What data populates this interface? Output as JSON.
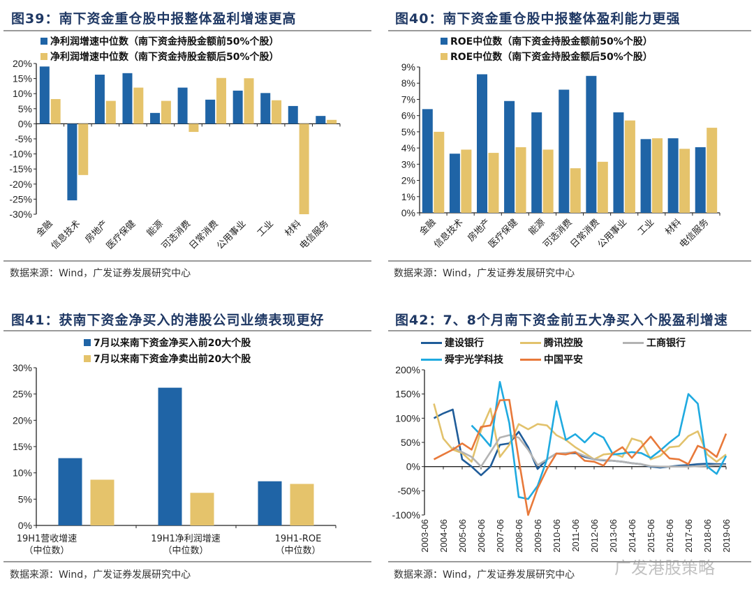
{
  "colors": {
    "blue": "#1F64A6",
    "gold": "#E5C36B",
    "title": "#1F3864"
  },
  "source_text": "数据来源：Wind，广发证券发展研究中心",
  "watermark": "广发港股策略",
  "chart_data": [
    {
      "id": "fig39",
      "type": "bar",
      "title": "图39：南下资金重仓股中报整体盈利增速更高",
      "categories": [
        "金融",
        "信息技术",
        "房地产",
        "医疗保健",
        "能源",
        "可选消费",
        "日常消费",
        "公用事业",
        "工业",
        "材料",
        "电信服务"
      ],
      "series": [
        {
          "name": "净利润增速中位数（南下资金持股金额前50%个股）",
          "color": "#1F64A6",
          "values": [
            19.0,
            -25.4,
            16.3,
            16.8,
            3.6,
            12.0,
            8.0,
            11.0,
            10.2,
            5.9,
            2.6
          ]
        },
        {
          "name": "净利润增速中位数（南下资金持股金额后50%个股）",
          "color": "#E5C36B",
          "values": [
            8.2,
            -17.0,
            7.6,
            12.0,
            7.6,
            -2.7,
            15.2,
            15.1,
            7.8,
            -30.0,
            1.3
          ]
        }
      ],
      "yticks": [
        "20%",
        "15%",
        "10%",
        "5%",
        "0%",
        "-5%",
        "-10%",
        "-15%",
        "-20%",
        "-25%",
        "-30%"
      ],
      "ylim": [
        -30,
        20
      ],
      "ystep": 5,
      "unit": "%",
      "legend": "top"
    },
    {
      "id": "fig40",
      "type": "bar",
      "title": "图40：南下资金重仓股中报整体盈利能力更强",
      "categories": [
        "金融",
        "信息技术",
        "房地产",
        "医疗保健",
        "能源",
        "可选消费",
        "日常消费",
        "公用事业",
        "工业",
        "材料",
        "电信服务"
      ],
      "series": [
        {
          "name": "ROE中位数（南下资金持股金额前50%个股）",
          "color": "#1F64A6",
          "values": [
            6.4,
            3.65,
            8.55,
            6.9,
            6.2,
            7.6,
            8.45,
            6.2,
            4.55,
            4.6,
            4.05
          ]
        },
        {
          "name": "ROE中位数（南下资金持股金额后50%个股）",
          "color": "#E5C36B",
          "values": [
            5.0,
            3.9,
            3.7,
            4.05,
            3.9,
            2.75,
            3.15,
            5.7,
            4.6,
            3.95,
            5.25
          ]
        }
      ],
      "yticks": [
        "9%",
        "8%",
        "7%",
        "6%",
        "5%",
        "4%",
        "3%",
        "2%",
        "1%",
        "0%"
      ],
      "ylim": [
        0,
        9
      ],
      "ystep": 1,
      "unit": "%",
      "legend": "top"
    },
    {
      "id": "fig41",
      "type": "bar",
      "title": "图41：获南下资金净买入的港股公司业绩表现更好",
      "categories": [
        {
          "line1": "19H1营收增速",
          "line2": "（中位数）"
        },
        {
          "line1": "19H1净利润增速",
          "line2": "（中位数）"
        },
        {
          "line1": "19H1-ROE",
          "line2": "（中位数）"
        }
      ],
      "series": [
        {
          "name": "7月以来南下资金净买入前20大个股",
          "color": "#1F64A6",
          "values": [
            12.8,
            26.2,
            8.4
          ]
        },
        {
          "name": "7月以来南下资金净卖出前20大个股",
          "color": "#E5C36B",
          "values": [
            8.7,
            6.2,
            7.9
          ]
        }
      ],
      "yticks": [
        "30%",
        "25%",
        "20%",
        "15%",
        "10%",
        "5%",
        "0%"
      ],
      "ylim": [
        0,
        30
      ],
      "ystep": 5,
      "unit": "%",
      "legend": "top"
    },
    {
      "id": "fig42",
      "type": "line",
      "title": "图42：7、8个月南下资金前五大净买入个股盈利增速",
      "x": [
        "2003-12",
        "2004-06",
        "2004-12",
        "2005-06",
        "2005-12",
        "2006-06",
        "2006-12",
        "2007-06",
        "2007-12",
        "2008-06",
        "2008-12",
        "2009-06",
        "2009-12",
        "2010-06",
        "2010-12",
        "2011-06",
        "2011-12",
        "2012-06",
        "2012-12",
        "2013-06",
        "2013-12",
        "2014-06",
        "2014-12",
        "2015-06",
        "2015-12",
        "2016-06",
        "2016-12",
        "2017-06",
        "2017-12",
        "2018-06",
        "2018-12",
        "2019-06"
      ],
      "xticks": [
        "2003-06",
        "2004-06",
        "2005-06",
        "2006-06",
        "2007-06",
        "2008-06",
        "2009-06",
        "2010-06",
        "2011-06",
        "2012-06",
        "2013-06",
        "2014-06",
        "2015-06",
        "2016-06",
        "2017-06",
        "2018-06",
        "2019-06"
      ],
      "series": [
        {
          "name": "建设银行",
          "color": "#1F5C99",
          "values": [
            100,
            110,
            118,
            15,
            0,
            -18,
            0,
            45,
            48,
            72,
            40,
            -5,
            15,
            27,
            27,
            28,
            20,
            15,
            13,
            12,
            10,
            7,
            5,
            0,
            -2,
            0,
            2,
            3,
            5,
            6,
            5,
            5
          ]
        },
        {
          "name": "腾讯控股",
          "color": "#E2C26C",
          "values": [
            130,
            58,
            35,
            28,
            10,
            75,
            120,
            20,
            45,
            88,
            77,
            88,
            85,
            65,
            55,
            40,
            28,
            15,
            25,
            27,
            20,
            58,
            52,
            15,
            22,
            40,
            42,
            63,
            73,
            25,
            10,
            25
          ]
        },
        {
          "name": "工商银行",
          "color": "#B3B3B3",
          "values": [
            null,
            null,
            40,
            30,
            20,
            0,
            30,
            60,
            65,
            60,
            35,
            3,
            15,
            27,
            28,
            30,
            22,
            15,
            14,
            12,
            10,
            7,
            5,
            1,
            0,
            0,
            0,
            0,
            1,
            2,
            3,
            3
          ]
        },
        {
          "name": "舜宇光学科技",
          "color": "#1FAAE0",
          "values": [
            null,
            null,
            null,
            null,
            85,
            65,
            42,
            175,
            90,
            -63,
            -67,
            -40,
            15,
            135,
            55,
            67,
            50,
            70,
            60,
            25,
            27,
            30,
            28,
            18,
            33,
            50,
            65,
            150,
            130,
            0,
            -15,
            22
          ]
        },
        {
          "name": "中国平安",
          "color": "#E8793A",
          "values": [
            15,
            25,
            35,
            48,
            35,
            82,
            85,
            137,
            138,
            15,
            -100,
            -45,
            -5,
            27,
            25,
            30,
            12,
            10,
            2,
            28,
            40,
            18,
            40,
            62,
            37,
            17,
            15,
            5,
            43,
            35,
            20,
            68
          ]
        }
      ],
      "yticks": [
        "200%",
        "150%",
        "100%",
        "50%",
        "0%",
        "-50%",
        "-100%"
      ],
      "ylim": [
        -100,
        200
      ],
      "ystep": 50,
      "unit": "%",
      "legend": "top"
    }
  ]
}
